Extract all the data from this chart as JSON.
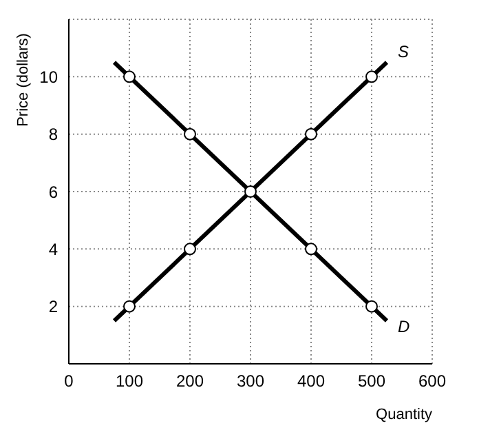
{
  "chart_data": {
    "type": "line",
    "xlabel": "Quantity",
    "ylabel": "Price (dollars)",
    "xlim": [
      0,
      600
    ],
    "ylim": [
      0,
      12
    ],
    "xticks": [
      0,
      100,
      200,
      300,
      400,
      500,
      600
    ],
    "yticks": [
      2,
      4,
      6,
      8,
      10
    ],
    "grid": true,
    "legend": false,
    "series": [
      {
        "name": "S",
        "color": "#000000",
        "x": [
          75,
          525
        ],
        "values": [
          1.5,
          10.5
        ],
        "marker": "none"
      },
      {
        "name": "D",
        "color": "#000000",
        "x": [
          75,
          525
        ],
        "values": [
          10.5,
          1.5
        ],
        "marker": "none"
      },
      {
        "type": "scatter",
        "color": "#000000",
        "x": [
          100,
          200,
          300,
          400,
          500
        ],
        "values": [
          2,
          4,
          6,
          8,
          10
        ],
        "marker": "circle"
      },
      {
        "type": "scatter",
        "color": "#000000",
        "x": [
          100,
          200,
          400,
          500
        ],
        "values": [
          10,
          8,
          4,
          2
        ],
        "marker": "circle"
      }
    ]
  }
}
